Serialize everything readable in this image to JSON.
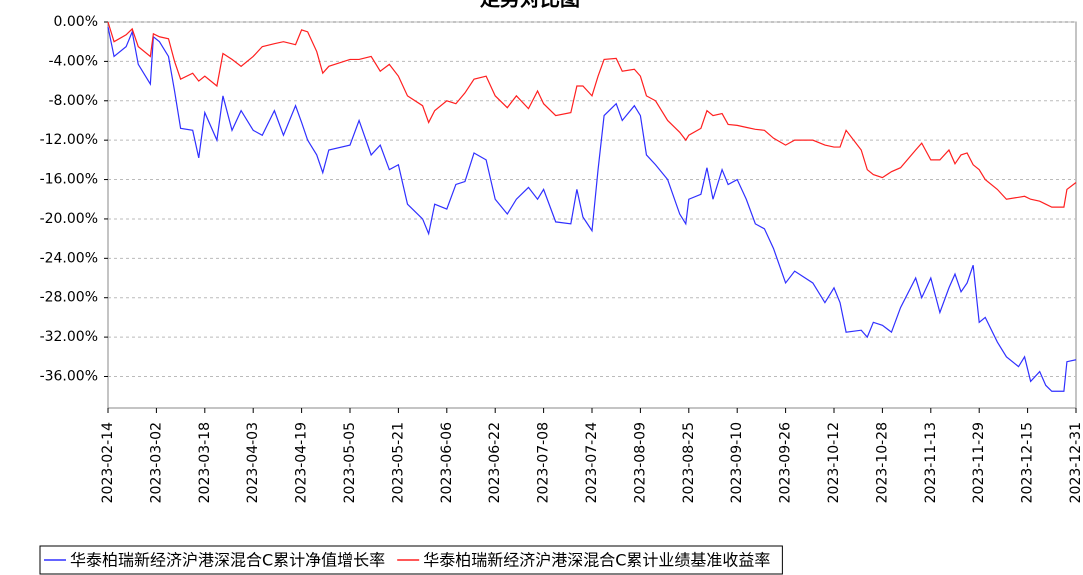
{
  "chart_data": {
    "type": "line",
    "title": "走势对比图",
    "x": [
      "2023-02-14",
      "2023-02-16",
      "2023-02-20",
      "2023-02-22",
      "2023-02-24",
      "2023-02-28",
      "2023-03-01",
      "2023-03-03",
      "2023-03-06",
      "2023-03-08",
      "2023-03-10",
      "2023-03-14",
      "2023-03-16",
      "2023-03-18",
      "2023-03-22",
      "2023-03-24",
      "2023-03-27",
      "2023-03-30",
      "2023-04-03",
      "2023-04-06",
      "2023-04-10",
      "2023-04-13",
      "2023-04-17",
      "2023-04-19",
      "2023-04-21",
      "2023-04-24",
      "2023-04-26",
      "2023-04-28",
      "2023-05-05",
      "2023-05-08",
      "2023-05-12",
      "2023-05-15",
      "2023-05-18",
      "2023-05-21",
      "2023-05-24",
      "2023-05-29",
      "2023-05-31",
      "2023-06-02",
      "2023-06-06",
      "2023-06-09",
      "2023-06-12",
      "2023-06-15",
      "2023-06-19",
      "2023-06-22",
      "2023-06-26",
      "2023-06-29",
      "2023-07-03",
      "2023-07-06",
      "2023-07-08",
      "2023-07-12",
      "2023-07-17",
      "2023-07-19",
      "2023-07-21",
      "2023-07-24",
      "2023-07-26",
      "2023-07-28",
      "2023-08-01",
      "2023-08-03",
      "2023-08-07",
      "2023-08-09",
      "2023-08-11",
      "2023-08-14",
      "2023-08-18",
      "2023-08-22",
      "2023-08-24",
      "2023-08-25",
      "2023-08-29",
      "2023-08-31",
      "2023-09-02",
      "2023-09-05",
      "2023-09-07",
      "2023-09-10",
      "2023-09-13",
      "2023-09-16",
      "2023-09-19",
      "2023-09-22",
      "2023-09-26",
      "2023-09-29",
      "2023-10-05",
      "2023-10-09",
      "2023-10-12",
      "2023-10-14",
      "2023-10-16",
      "2023-10-21",
      "2023-10-23",
      "2023-10-25",
      "2023-10-28",
      "2023-10-31",
      "2023-11-03",
      "2023-11-08",
      "2023-11-10",
      "2023-11-13",
      "2023-11-16",
      "2023-11-19",
      "2023-11-21",
      "2023-11-23",
      "2023-11-25",
      "2023-11-27",
      "2023-11-29",
      "2023-12-01",
      "2023-12-05",
      "2023-12-08",
      "2023-12-12",
      "2023-12-14",
      "2023-12-16",
      "2023-12-19",
      "2023-12-21",
      "2023-12-23",
      "2023-12-27",
      "2023-12-28",
      "2023-12-31"
    ],
    "series": [
      {
        "name": "华泰柏瑞新经济沪港深混合C累计净值增长率",
        "color": "#3030ff",
        "values": [
          -0.5,
          -3.5,
          -2.5,
          -1.0,
          -4.3,
          -6.3,
          -1.5,
          -2,
          -3.5,
          -7,
          -10.8,
          -11,
          -13.8,
          -9.2,
          -12,
          -7.5,
          -11,
          -9,
          -11,
          -11.5,
          -9,
          -11.5,
          -8.5,
          -10.2,
          -12,
          -13.5,
          -15.3,
          -13,
          -12.5,
          -10,
          -13.5,
          -12.5,
          -15,
          -14.5,
          -18.5,
          -20,
          -21.5,
          -18.5,
          -19,
          -16.5,
          -16.2,
          -13.3,
          -14,
          -18,
          -19.5,
          -18,
          -16.8,
          -18,
          -17,
          -20.3,
          -20.5,
          -17,
          -19.8,
          -21.2,
          -15,
          -9.5,
          -8.3,
          -10,
          -8.5,
          -9.5,
          -13.5,
          -14.5,
          -16,
          -19.5,
          -20.5,
          -18,
          -17.5,
          -14.8,
          -18,
          -15,
          -16.5,
          -16,
          -18,
          -20.5,
          -21,
          -23,
          -26.5,
          -25.3,
          -26.5,
          -28.5,
          -27,
          -28.5,
          -31.5,
          -31.3,
          -32,
          -30.5,
          -30.8,
          -31.5,
          -29,
          -26,
          -28,
          -26,
          -29.5,
          -27,
          -25.6,
          -27.4,
          -26.5,
          -24.7,
          -30.5,
          -30,
          -32.5,
          -34,
          -35,
          -34,
          -36.5,
          -35.5,
          -36.9,
          -37.5,
          -37.5,
          -34.5,
          -34.3
        ]
      },
      {
        "name": "华泰柏瑞新经济沪港深混合C累计业绩基准收益率",
        "color": "#ff2020",
        "values": [
          0,
          -2,
          -1.3,
          -0.7,
          -2.5,
          -3.5,
          -1.2,
          -1.5,
          -1.7,
          -4,
          -5.8,
          -5.2,
          -6,
          -5.5,
          -6.5,
          -3.2,
          -3.8,
          -4.5,
          -3.5,
          -2.5,
          -2.2,
          -2.0,
          -2.3,
          -0.8,
          -1.0,
          -3,
          -5.2,
          -4.5,
          -3.8,
          -3.8,
          -3.5,
          -5,
          -4.3,
          -5.5,
          -7.5,
          -8.5,
          -10.2,
          -9,
          -8,
          -8.3,
          -7.2,
          -5.8,
          -5.5,
          -7.5,
          -8.7,
          -7.5,
          -8.8,
          -7,
          -8.3,
          -9.5,
          -9.2,
          -6.5,
          -6.5,
          -7.5,
          -5.5,
          -3.8,
          -3.7,
          -5,
          -4.8,
          -5.5,
          -7.5,
          -8,
          -10,
          -11.2,
          -12,
          -11.5,
          -10.8,
          -9.0,
          -9.5,
          -9.3,
          -10.4,
          -10.5,
          -10.7,
          -10.9,
          -11.0,
          -11.8,
          -12.5,
          -12,
          -12,
          -12.5,
          -12.7,
          -12.7,
          -11,
          -13,
          -15,
          -15.5,
          -15.8,
          -15.2,
          -14.8,
          -13,
          -12.3,
          -14,
          -14,
          -13,
          -14.4,
          -13.5,
          -13.3,
          -14.5,
          -15,
          -16,
          -17,
          -18,
          -17.8,
          -17.7,
          -18,
          -18.2,
          -18.5,
          -18.8,
          -18.8,
          -17,
          -16.3
        ]
      }
    ],
    "xlim": [
      "2023-02-14",
      "2023-12-31"
    ],
    "xticks": [
      "2023-02-14",
      "2023-03-02",
      "2023-03-18",
      "2023-04-03",
      "2023-04-19",
      "2023-05-05",
      "2023-05-21",
      "2023-06-06",
      "2023-06-22",
      "2023-07-08",
      "2023-07-24",
      "2023-08-09",
      "2023-08-25",
      "2023-09-10",
      "2023-09-26",
      "2023-10-12",
      "2023-10-28",
      "2023-11-13",
      "2023-11-29",
      "2023-12-15",
      "2023-12-31"
    ],
    "ylim": [
      -39.2,
      0
    ],
    "yticks": [
      {
        "value": 0,
        "label": "0.00%"
      },
      {
        "value": -4,
        "label": "-4.00%"
      },
      {
        "value": -8,
        "label": "-8.00%"
      },
      {
        "value": -12,
        "label": "-12.00%"
      },
      {
        "value": -16,
        "label": "-16.00%"
      },
      {
        "value": -20,
        "label": "-20.00%"
      },
      {
        "value": -24,
        "label": "-24.00%"
      },
      {
        "value": -28,
        "label": "-28.00%"
      },
      {
        "value": -32,
        "label": "-32.00%"
      },
      {
        "value": -36,
        "label": "-36.00%"
      }
    ],
    "grid": true
  }
}
